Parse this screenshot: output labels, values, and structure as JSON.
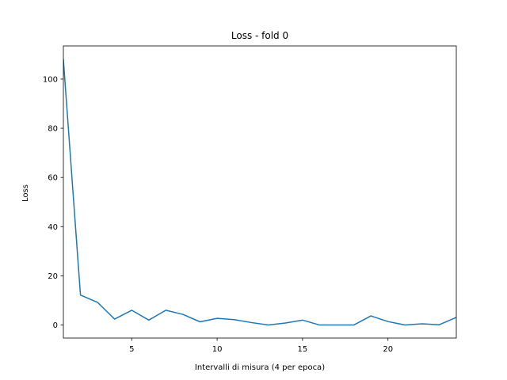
{
  "chart_data": {
    "type": "line",
    "title": "Loss - fold 0",
    "xlabel": "Intervalli di misura (4 per epoca)",
    "ylabel": "Loss",
    "xlim": [
      1,
      24
    ],
    "ylim": [
      -5.3,
      113.5
    ],
    "xticks": [
      5,
      10,
      15,
      20
    ],
    "yticks": [
      0,
      20,
      40,
      60,
      80,
      100
    ],
    "grid": false,
    "series": [
      {
        "color": "#1f77b4",
        "x": [
          1,
          2,
          3,
          4,
          5,
          6,
          7,
          8,
          9,
          10,
          11,
          12,
          13,
          14,
          15,
          16,
          17,
          18,
          19,
          20,
          21,
          22,
          23,
          24
        ],
        "y": [
          108.0,
          12.2,
          9.2,
          2.4,
          6.0,
          2.0,
          6.0,
          4.3,
          1.3,
          2.7,
          2.2,
          1.0,
          0.0,
          0.8,
          2.0,
          0.0,
          0.0,
          0.0,
          3.7,
          1.4,
          0.0,
          0.5,
          0.1,
          3.1
        ]
      }
    ]
  }
}
